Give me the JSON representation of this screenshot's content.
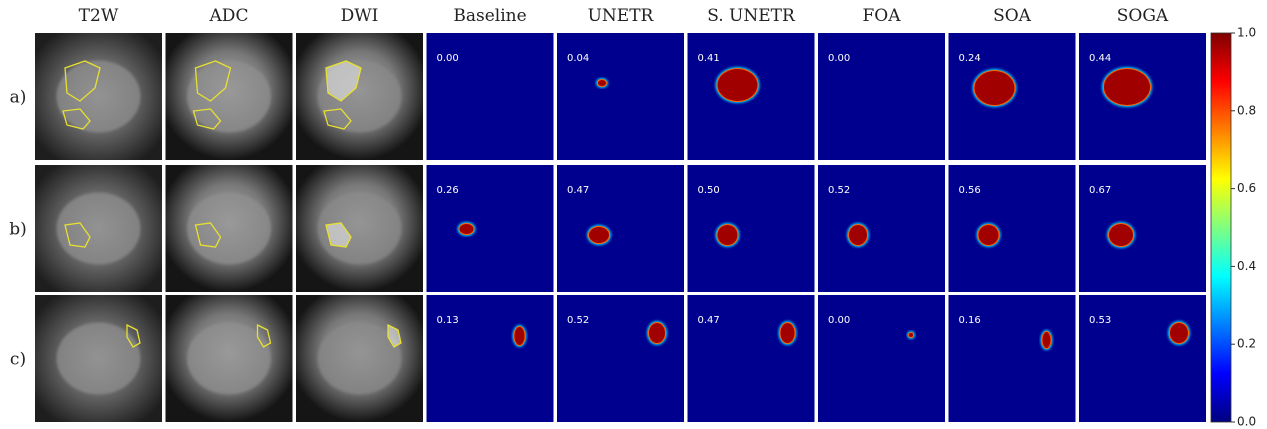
{
  "columns": [
    "T2W",
    "ADC",
    "DWI",
    "Baseline",
    "UNETR",
    "S. UNETR",
    "FOA",
    "SOA",
    "SOGA"
  ],
  "rows": [
    {
      "label": "a)",
      "scores": [
        "0.00",
        "0.04",
        "0.41",
        "0.00",
        "0.24",
        "0.44"
      ]
    },
    {
      "label": "b)",
      "scores": [
        "0.26",
        "0.47",
        "0.50",
        "0.52",
        "0.56",
        "0.67"
      ]
    },
    {
      "label": "c)",
      "scores": [
        "0.13",
        "0.52",
        "0.47",
        "0.00",
        "0.16",
        "0.53"
      ]
    }
  ],
  "colorbar": {
    "ticks": [
      {
        "value": 0,
        "label": "0.0"
      },
      {
        "value": 0.2,
        "label": "0.2"
      },
      {
        "value": 0.4,
        "label": "0.4"
      },
      {
        "value": 0.6,
        "label": "0.6"
      },
      {
        "value": 0.8,
        "label": "0.8"
      },
      {
        "value": 1,
        "label": "1.0"
      }
    ]
  }
}
